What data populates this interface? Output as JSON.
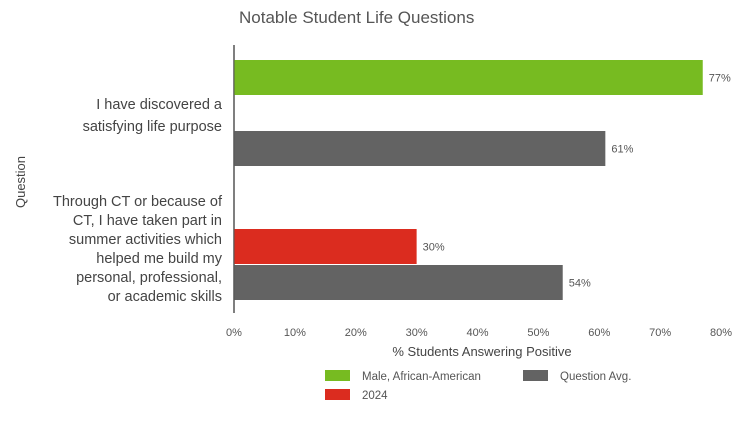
{
  "chart_data": {
    "type": "bar",
    "orientation": "horizontal",
    "title": "Notable Student Life Questions",
    "xlabel": "% Students Answering Positive",
    "ylabel": "Question",
    "xlim": [
      0,
      80
    ],
    "x_ticks": [
      "0%",
      "10%",
      "20%",
      "30%",
      "40%",
      "50%",
      "60%",
      "70%",
      "80%"
    ],
    "grid": false,
    "legend_position": "bottom",
    "categories": [
      {
        "label_lines": [
          "I have discovered a",
          "satisfying life purpose"
        ],
        "bars": [
          {
            "series": "Male, African-American",
            "value": 77,
            "label": "77%"
          },
          {
            "series": "Question Avg.",
            "value": 61,
            "label": "61%"
          }
        ]
      },
      {
        "label_lines": [
          "Through CT or because of",
          "CT, I have taken part in",
          "summer activities which",
          "helped me build my",
          "personal, professional,",
          "or academic skills"
        ],
        "bars": [
          {
            "series": "2024",
            "value": 30,
            "label": "30%"
          },
          {
            "series": "Question Avg.",
            "value": 54,
            "label": "54%"
          }
        ]
      }
    ],
    "series": [
      {
        "name": "Male, African-American",
        "color": "#77bb21"
      },
      {
        "name": "Question Avg.",
        "color": "#636363"
      },
      {
        "name": "2024",
        "color": "#db2c1f"
      }
    ]
  }
}
